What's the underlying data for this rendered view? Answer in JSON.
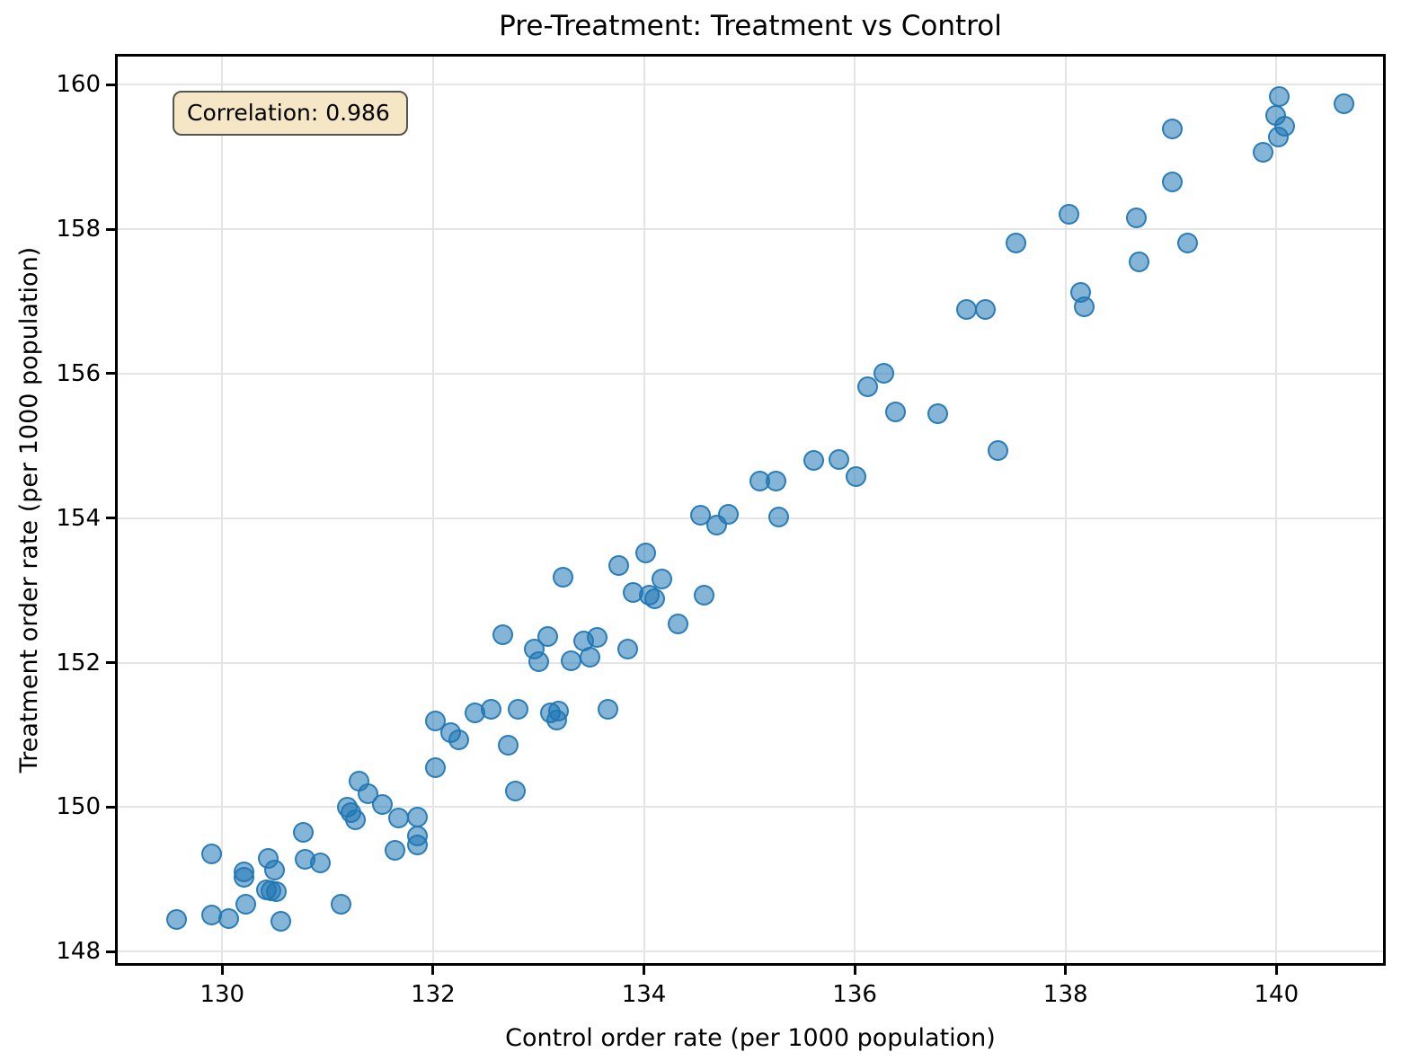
{
  "chart_data": {
    "type": "scatter",
    "title": "Pre-Treatment: Treatment vs Control",
    "xlabel": "Control order rate (per 1000 population)",
    "ylabel": "Treatment order rate (per 1000 population)",
    "xlim": [
      129.0,
      141.02
    ],
    "ylim": [
      147.83,
      160.4
    ],
    "x_ticks": [
      130,
      132,
      134,
      136,
      138,
      140
    ],
    "y_ticks": [
      148,
      150,
      152,
      154,
      156,
      158,
      160
    ],
    "grid": true,
    "legend": "none",
    "annotation": {
      "label": "Correlation: 0.986",
      "correlation": 0.986
    },
    "colors": {
      "marker_fill": "#1f77b4",
      "marker_fill_alpha": 0.55,
      "marker_edge": "#1f77b4",
      "marker_edge_alpha": 0.9,
      "annotation_bg": "#f5e7c5",
      "grid": "#e5e5e5",
      "spine": "#000000"
    },
    "marker_size_px": 23,
    "points": [
      [
        129.57,
        148.45
      ],
      [
        129.9,
        148.51
      ],
      [
        130.06,
        148.46
      ],
      [
        130.56,
        148.42
      ],
      [
        130.22,
        148.66
      ],
      [
        129.9,
        149.35
      ],
      [
        130.21,
        149.11
      ],
      [
        130.21,
        149.03
      ],
      [
        130.44,
        149.29
      ],
      [
        130.5,
        149.13
      ],
      [
        130.42,
        148.86
      ],
      [
        130.46,
        148.84
      ],
      [
        130.51,
        148.83
      ],
      [
        130.77,
        149.65
      ],
      [
        130.79,
        149.28
      ],
      [
        130.93,
        149.23
      ],
      [
        131.13,
        148.66
      ],
      [
        131.19,
        150.0
      ],
      [
        131.22,
        149.93
      ],
      [
        131.26,
        149.82
      ],
      [
        131.3,
        150.36
      ],
      [
        131.38,
        150.18
      ],
      [
        131.52,
        150.04
      ],
      [
        131.64,
        149.4
      ],
      [
        131.67,
        149.85
      ],
      [
        131.85,
        149.86
      ],
      [
        131.85,
        149.6
      ],
      [
        131.85,
        149.48
      ],
      [
        132.02,
        150.55
      ],
      [
        132.02,
        151.19
      ],
      [
        132.17,
        151.03
      ],
      [
        132.24,
        150.93
      ],
      [
        132.4,
        151.31
      ],
      [
        132.55,
        151.35
      ],
      [
        132.81,
        151.36
      ],
      [
        132.71,
        150.86
      ],
      [
        132.78,
        150.22
      ],
      [
        132.66,
        152.39
      ],
      [
        132.96,
        152.19
      ],
      [
        133.0,
        152.02
      ],
      [
        133.11,
        151.31
      ],
      [
        133.19,
        151.33
      ],
      [
        133.17,
        151.2
      ],
      [
        133.66,
        151.36
      ],
      [
        133.31,
        152.03
      ],
      [
        133.43,
        152.3
      ],
      [
        133.56,
        152.35
      ],
      [
        133.49,
        152.08
      ],
      [
        133.85,
        152.19
      ],
      [
        133.09,
        152.36
      ],
      [
        133.23,
        153.18
      ],
      [
        133.76,
        153.35
      ],
      [
        134.02,
        153.52
      ],
      [
        133.9,
        152.97
      ],
      [
        134.05,
        152.93
      ],
      [
        134.1,
        152.88
      ],
      [
        134.17,
        153.16
      ],
      [
        134.32,
        152.54
      ],
      [
        134.57,
        152.93
      ],
      [
        134.54,
        154.04
      ],
      [
        134.69,
        153.9
      ],
      [
        134.8,
        154.05
      ],
      [
        135.28,
        154.01
      ],
      [
        135.1,
        154.51
      ],
      [
        135.25,
        154.51
      ],
      [
        135.61,
        154.8
      ],
      [
        135.85,
        154.81
      ],
      [
        136.01,
        154.58
      ],
      [
        136.12,
        155.82
      ],
      [
        136.28,
        156.0
      ],
      [
        136.39,
        155.47
      ],
      [
        136.79,
        155.44
      ],
      [
        137.36,
        154.94
      ],
      [
        137.06,
        156.89
      ],
      [
        137.24,
        156.89
      ],
      [
        137.53,
        157.81
      ],
      [
        138.03,
        158.21
      ],
      [
        138.14,
        157.12
      ],
      [
        138.18,
        156.93
      ],
      [
        138.67,
        158.16
      ],
      [
        138.7,
        157.55
      ],
      [
        139.01,
        159.39
      ],
      [
        139.01,
        158.65
      ],
      [
        139.16,
        157.81
      ],
      [
        139.87,
        159.06
      ],
      [
        139.99,
        159.57
      ],
      [
        140.02,
        159.27
      ],
      [
        140.03,
        159.83
      ],
      [
        140.08,
        159.43
      ],
      [
        140.64,
        159.74
      ]
    ]
  }
}
